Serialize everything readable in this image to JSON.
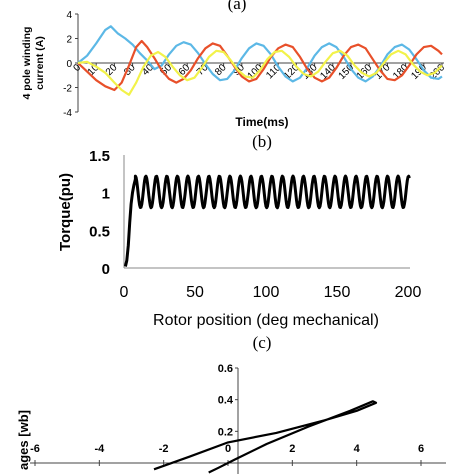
{
  "panels": {
    "a_label": "(a)",
    "b_label": "(b)",
    "c_label": "(c)"
  },
  "chart_data": [
    {
      "type": "line",
      "panel": "(a)",
      "xlabel": "Time(ms)",
      "ylabel_line1": "4 pole winding",
      "ylabel_line2": "current (A)",
      "xlim": [
        0,
        200
      ],
      "ylim": [
        -4,
        4
      ],
      "xticks": [
        0,
        10,
        20,
        30,
        40,
        50,
        60,
        70,
        80,
        90,
        100,
        110,
        120,
        130,
        140,
        150,
        160,
        170,
        180,
        190,
        200
      ],
      "yticks": [
        -4,
        -2,
        0,
        2,
        4
      ],
      "colors": [
        "#5cb8e6",
        "#e8502a",
        "#f2f24a"
      ],
      "grid": false,
      "series": [
        {
          "color": "#5cb8e6",
          "x": [
            0,
            5,
            10,
            15,
            18,
            22,
            26,
            30,
            34,
            38,
            42,
            46,
            50,
            54,
            58,
            62,
            66,
            70,
            74,
            78,
            82,
            86,
            90,
            94,
            98,
            102,
            106,
            110,
            114,
            118,
            122,
            126,
            130,
            134,
            138,
            142,
            146,
            150,
            154,
            158,
            162,
            166,
            170,
            174,
            178,
            182,
            186,
            190,
            194,
            198,
            200
          ],
          "y": [
            0,
            0.6,
            1.6,
            2.7,
            3.0,
            2.4,
            2.0,
            1.5,
            0.8,
            0.2,
            -0.5,
            -0.2,
            0.7,
            1.4,
            1.7,
            1.5,
            0.8,
            -0.1,
            -0.9,
            -1.4,
            -1.3,
            -0.6,
            0.4,
            1.2,
            1.6,
            1.4,
            0.7,
            -0.3,
            -1.1,
            -1.5,
            -1.2,
            -0.4,
            0.6,
            1.3,
            1.6,
            1.3,
            0.5,
            -0.5,
            -1.2,
            -1.5,
            -1.1,
            -0.3,
            0.7,
            1.3,
            1.5,
            1.1,
            0.3,
            -0.6,
            -1.2,
            -1.3,
            -1.1
          ]
        },
        {
          "color": "#e8502a",
          "x": [
            0,
            5,
            10,
            15,
            20,
            24,
            28,
            32,
            35,
            38,
            42,
            46,
            50,
            54,
            58,
            62,
            66,
            70,
            74,
            78,
            82,
            86,
            90,
            94,
            98,
            102,
            106,
            110,
            114,
            118,
            122,
            126,
            130,
            134,
            138,
            142,
            146,
            150,
            154,
            158,
            162,
            166,
            170,
            174,
            178,
            182,
            186,
            190,
            194,
            198,
            200
          ],
          "y": [
            0,
            -0.7,
            -1.4,
            -1.9,
            -2.2,
            -1.6,
            -0.2,
            1.3,
            1.8,
            1.3,
            0.4,
            -0.6,
            -1.3,
            -1.6,
            -1.3,
            -0.6,
            0.4,
            1.2,
            1.6,
            1.4,
            0.6,
            -0.3,
            -1.1,
            -1.5,
            -1.3,
            -0.5,
            0.5,
            1.2,
            1.5,
            1.3,
            0.5,
            -0.5,
            -1.2,
            -1.5,
            -1.2,
            -0.4,
            0.6,
            1.3,
            1.5,
            1.2,
            0.3,
            -0.6,
            -1.3,
            -1.4,
            -1.0,
            -0.2,
            0.7,
            1.3,
            1.4,
            1.0,
            0.7
          ]
        },
        {
          "color": "#f2f24a",
          "x": [
            0,
            5,
            10,
            15,
            20,
            24,
            28,
            32,
            36,
            40,
            44,
            48,
            52,
            56,
            60,
            64,
            68,
            72,
            76,
            80,
            84,
            88,
            92,
            96,
            100,
            104,
            108,
            112,
            116,
            120,
            124,
            128,
            132,
            136,
            140,
            144,
            148,
            152,
            156,
            160,
            164,
            168,
            172,
            176,
            180,
            184,
            188,
            192,
            196,
            200
          ],
          "y": [
            0,
            0.1,
            -0.3,
            -0.8,
            -1.6,
            -2.2,
            -2.6,
            -1.6,
            -0.3,
            0.6,
            0.9,
            0.5,
            -0.3,
            -1.0,
            -1.4,
            -1.2,
            -0.4,
            0.5,
            1.0,
            0.9,
            0.2,
            -0.6,
            -1.1,
            -1.2,
            -0.6,
            0.3,
            0.9,
            1.0,
            0.5,
            -0.3,
            -0.9,
            -1.1,
            -0.7,
            0.1,
            0.8,
            1.0,
            0.6,
            -0.2,
            -0.8,
            -1.1,
            -0.8,
            0.0,
            0.7,
            1.0,
            0.7,
            -0.1,
            -0.7,
            -1.0,
            -0.8,
            -0.2
          ]
        }
      ]
    },
    {
      "type": "line",
      "panel": "(b)",
      "xlabel": "Rotor position (deg mechanical)",
      "ylabel": "Torque(pu)",
      "xlim": [
        0,
        200
      ],
      "ylim": [
        0,
        1.5
      ],
      "xticks": [
        0,
        50,
        100,
        150,
        200
      ],
      "yticks": [
        0,
        0.5,
        1,
        1.5
      ],
      "ytick_labels": [
        "0",
        "0.5",
        "1",
        "1.5"
      ],
      "grid": false,
      "series": [
        {
          "color": "#000000",
          "startup_x": [
            1,
            2,
            3,
            4,
            5,
            6,
            7,
            8
          ],
          "startup_y": [
            0.02,
            0.1,
            0.3,
            0.6,
            0.85,
            1.0,
            1.1,
            1.18
          ],
          "ripple_start": 8,
          "ripple_end": 201,
          "ripple_mean": 1.01,
          "ripple_amplitude": 0.21,
          "ripple_period": 7.4
        }
      ]
    },
    {
      "type": "line",
      "panel": "(c)",
      "ylabel": "ages [wb]",
      "xlim": [
        -6,
        6
      ],
      "ylim": [
        -0.1,
        0.6
      ],
      "xticks": [
        -6,
        -4,
        -2,
        0,
        2,
        4,
        6
      ],
      "yticks": [
        0.2,
        0.4,
        0.6
      ],
      "grid": false,
      "series": [
        {
          "color": "#000000",
          "x": [
            -2.3,
            -1.2,
            0.0,
            1.5,
            3.0,
            4.0,
            4.6,
            4.5,
            3.8,
            2.5,
            1.2,
            0.2,
            -0.3,
            -0.6
          ],
          "y": [
            -0.04,
            0.04,
            0.13,
            0.19,
            0.27,
            0.33,
            0.38,
            0.39,
            0.33,
            0.23,
            0.12,
            0.02,
            -0.03,
            -0.06
          ]
        }
      ]
    }
  ]
}
